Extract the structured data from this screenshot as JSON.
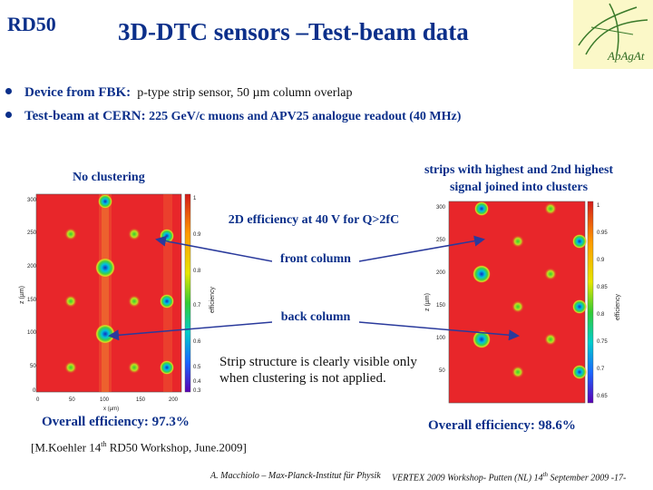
{
  "header": {
    "logo_text": "RD50",
    "title": "3D-DTC sensors –Test-beam data",
    "brand_logo_text": "ApAgAt"
  },
  "bullets": [
    {
      "label": "Device from FBK:",
      "text": "p-type strip sensor, 50  µm column overlap"
    },
    {
      "label": "Test-beam at CERN:",
      "text": "225 GeV/c muons and APV25 analogue readout (40 MHz)"
    }
  ],
  "labels": {
    "no_clustering": "No clustering",
    "strips_line1": "strips with highest and 2nd highest",
    "strips_line2": "signal joined into clusters",
    "efficiency_2d": "2D efficiency at 40 V for Q>2fC",
    "front_column": "front column",
    "back_column": "back column",
    "strip_structure": "Strip structure is clearly visible only when clustering is not applied.",
    "overall_left": "Overall efficiency: 97.3%",
    "overall_right": "Overall efficiency: 98.6%"
  },
  "reference": {
    "prefix": "[M.Koehler 14",
    "sup": "th",
    "suffix": " RD50 Workshop, June.2009]"
  },
  "footer": {
    "left": "A. Macchiolo – Max-Planck-Institut für Physik",
    "right_prefix": "VERTEX 2009 Workshop- Putten (NL) 14",
    "right_sup": "th",
    "right_suffix": " September 2009  -17-"
  },
  "plots": {
    "left": {
      "y_ticks": [
        "300",
        "250",
        "200",
        "150",
        "100",
        "50",
        "0"
      ],
      "x_ticks": [
        "0",
        "50",
        "100",
        "150",
        "200"
      ],
      "x_label": "x (µm)",
      "y_label": "z (µm)",
      "colorbar_ticks": [
        "1",
        "0.9",
        "0.8",
        "0.7",
        "0.6",
        "0.5",
        "0.4",
        "0.3"
      ],
      "colorbar_label": "efficiency"
    },
    "right": {
      "y_ticks": [
        "300",
        "250",
        "200",
        "150",
        "100",
        "50"
      ],
      "colorbar_ticks": [
        "1",
        "0.95",
        "0.9",
        "0.85",
        "0.8",
        "0.75",
        "0.7",
        "0.65"
      ],
      "colorbar_label": "efficiency",
      "y_label": "z (µm)"
    }
  },
  "colors": {
    "title_blue": "#0b2f8a",
    "map_red": "#e8262a",
    "arrow_blue": "#2a3a9c"
  }
}
